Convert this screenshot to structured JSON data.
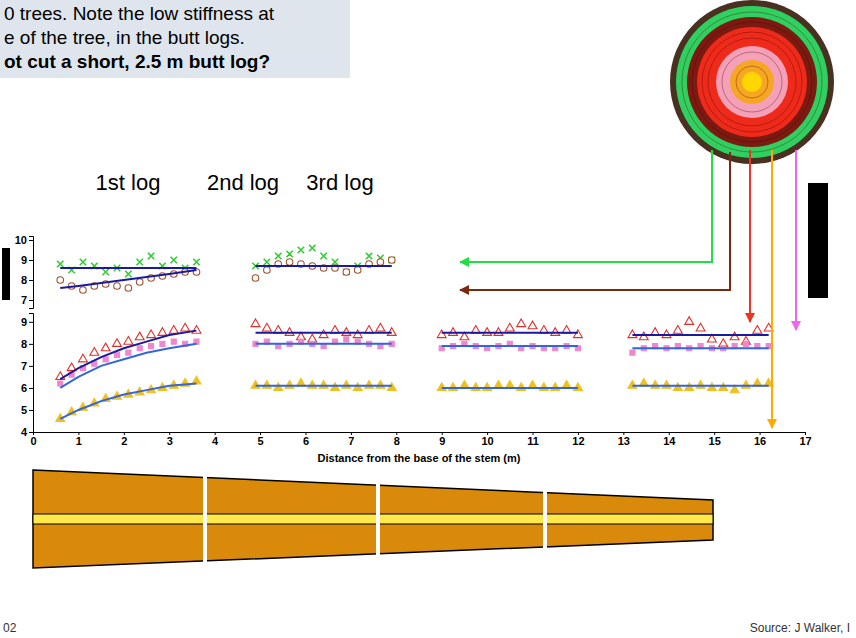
{
  "chart_data": [
    {
      "type": "scatter",
      "xlim": [
        0,
        17
      ],
      "ylim": [
        6.6,
        10.2
      ],
      "yticks": [
        7,
        8,
        9,
        10
      ],
      "tick_labels": "y",
      "grid": false,
      "series": [
        {
          "type": "scatter",
          "color": "#33cc33",
          "marker": "x",
          "x": [
            0.6,
            0.85,
            1.1,
            1.35,
            1.6,
            1.85,
            2.1,
            2.35,
            2.6,
            2.85,
            3.1,
            3.35,
            3.6,
            4.9,
            5.15,
            5.4,
            5.65,
            5.9,
            6.15,
            6.4,
            6.65,
            6.9,
            7.15,
            7.4,
            7.65,
            7.9
          ],
          "values": [
            8.8,
            8.5,
            8.9,
            8.7,
            8.4,
            8.6,
            8.3,
            8.9,
            9.2,
            8.7,
            9.0,
            8.6,
            8.9,
            8.7,
            8.9,
            9.2,
            9.3,
            9.5,
            9.6,
            9.2,
            8.9,
            8.4,
            8.7,
            9.2,
            9.1,
            9.0
          ]
        },
        {
          "type": "scatter",
          "color": "#a0522d",
          "marker": "circle-open",
          "x": [
            0.6,
            0.85,
            1.1,
            1.35,
            1.6,
            1.85,
            2.1,
            2.35,
            2.6,
            2.85,
            3.1,
            3.35,
            3.6,
            4.9,
            5.15,
            5.4,
            5.65,
            5.9,
            6.15,
            6.4,
            6.65,
            6.9,
            7.15,
            7.4,
            7.65,
            7.9
          ],
          "values": [
            8.0,
            7.7,
            7.5,
            7.7,
            7.8,
            7.7,
            7.6,
            7.9,
            8.1,
            8.2,
            8.3,
            8.4,
            8.4,
            8.1,
            8.5,
            8.8,
            8.9,
            8.8,
            8.7,
            8.6,
            8.6,
            8.4,
            8.5,
            8.8,
            8.9,
            9.0
          ]
        },
        {
          "type": "line",
          "color": "#1a1aa0",
          "line_style": "solid",
          "x": [
            0.6,
            3.6,
            4.25,
            4.9,
            7.9
          ],
          "values": [
            8.6,
            8.6,
            null,
            8.7,
            8.7
          ]
        },
        {
          "type": "line",
          "color": "#1a1aa0",
          "line_style": "solid",
          "x": [
            0.6,
            1.0,
            1.5,
            2.0,
            2.5,
            3.0,
            3.6
          ],
          "values": [
            7.6,
            7.7,
            7.85,
            8.0,
            8.15,
            8.3,
            8.5
          ]
        }
      ]
    },
    {
      "type": "scatter",
      "xlim": [
        0,
        17
      ],
      "xticks": [
        0,
        1,
        2,
        3,
        4,
        5,
        6,
        7,
        8,
        9,
        10,
        11,
        12,
        13,
        14,
        15,
        16,
        17
      ],
      "ylim": [
        4,
        9.4
      ],
      "yticks": [
        4,
        5,
        6,
        7,
        8,
        9
      ],
      "x_label": "Distance from the base of the stem (m)",
      "grid": false,
      "series": [
        {
          "type": "scatter",
          "color": "#e0302a",
          "marker": "triangle-open",
          "x": [
            0.6,
            0.85,
            1.1,
            1.35,
            1.6,
            1.85,
            2.1,
            2.35,
            2.6,
            2.85,
            3.1,
            3.35,
            3.6,
            4.9,
            5.15,
            5.4,
            5.65,
            5.9,
            6.15,
            6.4,
            6.65,
            6.9,
            7.15,
            7.4,
            7.65,
            7.9,
            9,
            9.25,
            9.5,
            9.75,
            10,
            10.25,
            10.5,
            10.75,
            11,
            11.25,
            11.5,
            11.75,
            12,
            13.2,
            13.45,
            13.7,
            13.95,
            14.2,
            14.45,
            14.7,
            14.95,
            15.2,
            15.45,
            15.7,
            15.95,
            16.2
          ],
          "values": [
            6.5,
            6.9,
            7.3,
            7.6,
            7.8,
            8.0,
            8.1,
            8.3,
            8.4,
            8.5,
            8.6,
            8.7,
            8.6,
            8.9,
            8.7,
            8.6,
            8.5,
            8.3,
            8.2,
            8.4,
            8.6,
            8.5,
            8.4,
            8.6,
            8.7,
            8.5,
            8.4,
            8.5,
            8.3,
            8.6,
            8.5,
            8.5,
            8.7,
            8.9,
            8.8,
            8.6,
            8.5,
            8.6,
            8.4,
            8.4,
            8.3,
            8.5,
            8.4,
            8.6,
            9.0,
            8.7,
            8.2,
            8.0,
            8.3,
            8.1,
            8.6,
            8.7
          ]
        },
        {
          "type": "scatter",
          "color": "#ee88cc",
          "marker": "square",
          "x": [
            0.6,
            0.85,
            1.1,
            1.35,
            1.6,
            1.85,
            2.1,
            2.35,
            2.6,
            2.85,
            3.1,
            3.35,
            3.6,
            4.9,
            5.15,
            5.4,
            5.65,
            5.9,
            6.15,
            6.4,
            6.65,
            6.9,
            7.15,
            7.4,
            7.65,
            7.9,
            9,
            9.25,
            9.5,
            9.75,
            10,
            10.25,
            10.5,
            10.75,
            11,
            11.25,
            11.5,
            11.75,
            12,
            13.2,
            13.45,
            13.7,
            13.95,
            14.2,
            14.45,
            14.7,
            14.95,
            15.2,
            15.45,
            15.7,
            15.95,
            16.2
          ],
          "values": [
            6.2,
            6.6,
            6.9,
            7.1,
            7.3,
            7.5,
            7.6,
            7.8,
            7.9,
            8.0,
            8.1,
            8.0,
            8.1,
            8.0,
            8.1,
            7.9,
            8.0,
            8.1,
            8.0,
            7.9,
            8.1,
            8.2,
            8.1,
            8.0,
            7.9,
            8.0,
            7.8,
            7.9,
            8.0,
            7.9,
            7.8,
            7.9,
            8.0,
            7.8,
            7.9,
            7.8,
            7.8,
            7.9,
            7.8,
            7.6,
            7.8,
            7.9,
            7.8,
            7.9,
            7.8,
            7.9,
            7.8,
            7.8,
            7.9,
            8.0,
            7.9,
            7.9
          ]
        },
        {
          "type": "scatter",
          "color": "#f0c020",
          "marker": "triangle",
          "x": [
            0.6,
            0.85,
            1.1,
            1.35,
            1.6,
            1.85,
            2.1,
            2.35,
            2.6,
            2.85,
            3.1,
            3.35,
            3.6,
            4.9,
            5.15,
            5.4,
            5.65,
            5.9,
            6.15,
            6.4,
            6.65,
            6.9,
            7.15,
            7.4,
            7.65,
            7.9,
            9,
            9.25,
            9.5,
            9.75,
            10,
            10.25,
            10.5,
            10.75,
            11,
            11.25,
            11.5,
            11.75,
            12,
            13.2,
            13.45,
            13.7,
            13.95,
            14.2,
            14.45,
            14.7,
            14.95,
            15.2,
            15.45,
            15.7,
            15.95,
            16.2
          ],
          "values": [
            4.6,
            4.9,
            5.1,
            5.3,
            5.5,
            5.6,
            5.7,
            5.8,
            5.9,
            6.0,
            6.1,
            6.2,
            6.3,
            6.1,
            6.1,
            6.0,
            6.1,
            6.2,
            6.1,
            6.1,
            6.0,
            6.1,
            6.0,
            6.1,
            6.1,
            6.0,
            6.0,
            6.0,
            6.1,
            6.0,
            6.0,
            6.1,
            6.1,
            6.0,
            6.1,
            6.0,
            6.0,
            6.1,
            6.0,
            6.1,
            6.2,
            6.1,
            6.1,
            6.0,
            6.0,
            6.1,
            6.0,
            6.0,
            5.9,
            6.1,
            6.2,
            6.2
          ]
        },
        {
          "type": "line",
          "color": "#1a1aa0",
          "line_style": "solid",
          "x": [
            0.6,
            1.0,
            1.5,
            2.0,
            2.5,
            3.0,
            3.6,
            4.25,
            4.9,
            7.9,
            8.45,
            9.0,
            12.0,
            12.6,
            13.2,
            16.2
          ],
          "values": [
            6.4,
            6.9,
            7.4,
            7.8,
            8.1,
            8.4,
            8.6,
            null,
            8.5,
            8.5,
            null,
            8.5,
            8.5,
            null,
            8.4,
            8.4
          ]
        },
        {
          "type": "line",
          "color": "#3366dd",
          "line_style": "solid",
          "x": [
            0.6,
            1.0,
            1.5,
            2.0,
            2.5,
            3.0,
            3.6,
            4.25,
            4.9,
            7.9,
            8.45,
            9.0,
            12.0,
            12.6,
            13.2,
            16.2
          ],
          "values": [
            6.0,
            6.5,
            7.0,
            7.3,
            7.6,
            7.8,
            8.0,
            null,
            8.0,
            8.0,
            null,
            7.9,
            7.9,
            null,
            7.8,
            7.8
          ]
        },
        {
          "type": "line",
          "color": "#3366dd",
          "line_style": "solid",
          "x": [
            0.6,
            1.0,
            1.5,
            2.0,
            2.5,
            3.0,
            3.6,
            4.25,
            4.9,
            7.9,
            8.45,
            9.0,
            12.0,
            12.6,
            13.2,
            16.2
          ],
          "values": [
            4.6,
            5.0,
            5.4,
            5.7,
            5.9,
            6.1,
            6.2,
            null,
            6.1,
            6.1,
            null,
            6.0,
            6.0,
            null,
            6.1,
            6.1
          ]
        }
      ]
    }
  ],
  "slide": {
    "note_lines": [
      "0 trees. Note the low stiffness at",
      "e of the tree, in the butt logs."
    ],
    "question": "ot cut a short, 2.5 m butt log?",
    "log_labels": [
      "1st log",
      "2nd log",
      "3rd log"
    ],
    "source": "Source: J Walker, I",
    "page": "02"
  }
}
